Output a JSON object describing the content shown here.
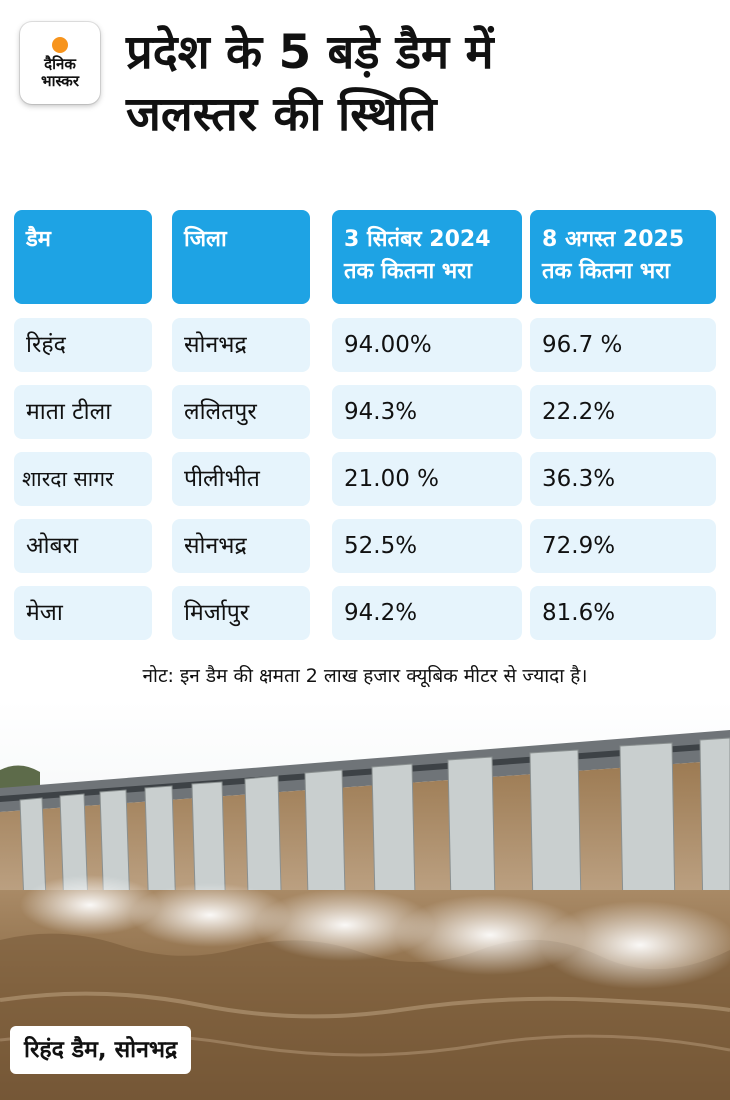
{
  "brand": {
    "logo_line1": "दैनिक",
    "logo_line2": "भास्कर"
  },
  "title": {
    "line1": "प्रदेश के 5 बड़े डैम में",
    "line2": "जलस्तर की स्थिति"
  },
  "table": {
    "headers": {
      "dam": "डैम",
      "district": "जिला",
      "col2024_line1": "3 सितंबर 2024",
      "col2024_line2": "तक कितना भरा",
      "col2025_line1": "8 अगस्त 2025",
      "col2025_line2": "तक कितना भरा"
    },
    "rows": [
      {
        "dam": "रिहंद",
        "district": "सोनभद्र",
        "fill_2024": "94.00%",
        "fill_2025": "96.7 %"
      },
      {
        "dam": "माता टीला",
        "district": "ललितपुर",
        "fill_2024": "94.3%",
        "fill_2025": "22.2%"
      },
      {
        "dam": "शारदा सागर",
        "district": "पीलीभीत",
        "fill_2024": "21.00 %",
        "fill_2025": "36.3%"
      },
      {
        "dam": "ओबरा",
        "district": "सोनभद्र",
        "fill_2024": "52.5%",
        "fill_2025": "72.9%"
      },
      {
        "dam": "मेजा",
        "district": "मिर्जापुर",
        "fill_2024": "94.2%",
        "fill_2025": "81.6%"
      }
    ]
  },
  "note": "नोट: इन डैम की क्षमता 2 लाख हजार क्यूबिक मीटर से ज्यादा है।",
  "photo_caption": "रिहंद डैम, सोनभद्र",
  "colors": {
    "header_blue": "#1ea3e4",
    "row_blue": "#e6f4fc",
    "logo_orange": "#f7941d"
  }
}
